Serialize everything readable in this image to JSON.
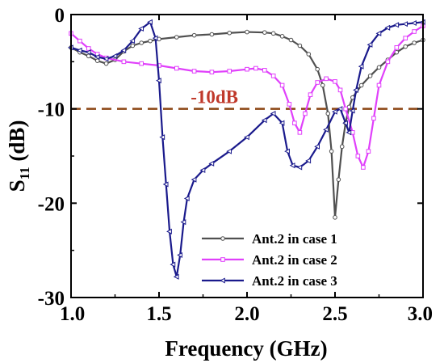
{
  "chart_data": {
    "type": "line",
    "title": "",
    "xlabel": "Frequency (GHz)",
    "ylabel_main": "S",
    "ylabel_sub": "11",
    "ylabel_unit": " (dB)",
    "xlim": [
      1.0,
      3.0
    ],
    "ylim": [
      -30,
      0
    ],
    "xticks": [
      1.0,
      1.5,
      2.0,
      2.5,
      3.0
    ],
    "xtick_labels": [
      "1.0",
      "1.5",
      "2.0",
      "2.5",
      "3.0"
    ],
    "yticks": [
      0,
      -10,
      -20,
      -30
    ],
    "ytick_labels": [
      "0",
      "-10",
      "-20",
      "-30"
    ],
    "grid": false,
    "legend_position": "lower-right",
    "reference_line": {
      "y": -10,
      "label": "-10dB",
      "color": "#8B4513"
    },
    "series": [
      {
        "name": "Ant.2 in case 1",
        "color": "#505050",
        "marker": "circle",
        "x": [
          1.0,
          1.05,
          1.1,
          1.15,
          1.2,
          1.25,
          1.3,
          1.35,
          1.4,
          1.45,
          1.5,
          1.6,
          1.7,
          1.8,
          1.9,
          2.0,
          2.1,
          2.15,
          2.2,
          2.25,
          2.3,
          2.35,
          2.4,
          2.43,
          2.46,
          2.48,
          2.5,
          2.52,
          2.54,
          2.56,
          2.58,
          2.6,
          2.65,
          2.7,
          2.75,
          2.8,
          2.85,
          2.9,
          2.95,
          3.0
        ],
        "y": [
          -3.5,
          -4.0,
          -4.4,
          -4.9,
          -5.2,
          -4.8,
          -3.9,
          -3.3,
          -3.0,
          -2.8,
          -2.6,
          -2.4,
          -2.2,
          -2.1,
          -1.95,
          -1.85,
          -1.9,
          -2.0,
          -2.3,
          -2.7,
          -3.3,
          -4.2,
          -5.8,
          -7.5,
          -10.5,
          -14.5,
          -21.5,
          -17.5,
          -14.0,
          -11.5,
          -9.8,
          -8.8,
          -7.5,
          -6.5,
          -5.6,
          -4.8,
          -4.0,
          -3.4,
          -3.0,
          -2.7
        ]
      },
      {
        "name": "Ant.2 in case 2",
        "color": "#E040FB",
        "marker": "square",
        "x": [
          1.0,
          1.05,
          1.1,
          1.15,
          1.2,
          1.3,
          1.4,
          1.5,
          1.6,
          1.7,
          1.8,
          1.9,
          2.0,
          2.05,
          2.1,
          2.15,
          2.2,
          2.24,
          2.27,
          2.3,
          2.33,
          2.36,
          2.4,
          2.45,
          2.5,
          2.53,
          2.56,
          2.6,
          2.63,
          2.66,
          2.69,
          2.72,
          2.75,
          2.8,
          2.85,
          2.9,
          2.95,
          3.0
        ],
        "y": [
          -2.0,
          -2.8,
          -3.6,
          -4.2,
          -4.6,
          -5.0,
          -5.2,
          -5.4,
          -5.7,
          -6.0,
          -6.1,
          -6.0,
          -5.8,
          -5.7,
          -5.9,
          -6.5,
          -7.5,
          -9.5,
          -11.5,
          -12.5,
          -10.5,
          -8.5,
          -7.2,
          -6.8,
          -7.1,
          -8.0,
          -10.0,
          -12.5,
          -15.0,
          -16.2,
          -14.5,
          -11.0,
          -7.5,
          -5.0,
          -3.5,
          -2.5,
          -1.8,
          -1.2
        ]
      },
      {
        "name": "Ant.2 in case 3",
        "color": "#1A1A8C",
        "marker": "triangle-left",
        "x": [
          1.0,
          1.05,
          1.1,
          1.15,
          1.2,
          1.25,
          1.3,
          1.35,
          1.4,
          1.45,
          1.48,
          1.5,
          1.52,
          1.54,
          1.56,
          1.58,
          1.6,
          1.62,
          1.64,
          1.66,
          1.7,
          1.75,
          1.8,
          1.9,
          2.0,
          2.1,
          2.15,
          2.2,
          2.23,
          2.26,
          2.3,
          2.35,
          2.4,
          2.45,
          2.5,
          2.53,
          2.56,
          2.58,
          2.6,
          2.62,
          2.65,
          2.7,
          2.75,
          2.8,
          2.85,
          2.9,
          2.95,
          3.0
        ],
        "y": [
          -3.5,
          -3.8,
          -4.0,
          -4.5,
          -4.7,
          -4.4,
          -3.8,
          -2.8,
          -1.5,
          -0.8,
          -2.5,
          -7.0,
          -13.0,
          -18.0,
          -23.0,
          -26.5,
          -27.8,
          -25.5,
          -22.0,
          -19.5,
          -17.5,
          -16.5,
          -15.8,
          -14.5,
          -13.0,
          -11.2,
          -10.5,
          -11.5,
          -14.5,
          -16.0,
          -16.2,
          -15.5,
          -14.0,
          -12.2,
          -10.3,
          -10.0,
          -11.5,
          -12.5,
          -10.2,
          -8.0,
          -5.5,
          -3.2,
          -2.0,
          -1.4,
          -1.1,
          -1.0,
          -0.9,
          -0.8
        ]
      }
    ]
  }
}
